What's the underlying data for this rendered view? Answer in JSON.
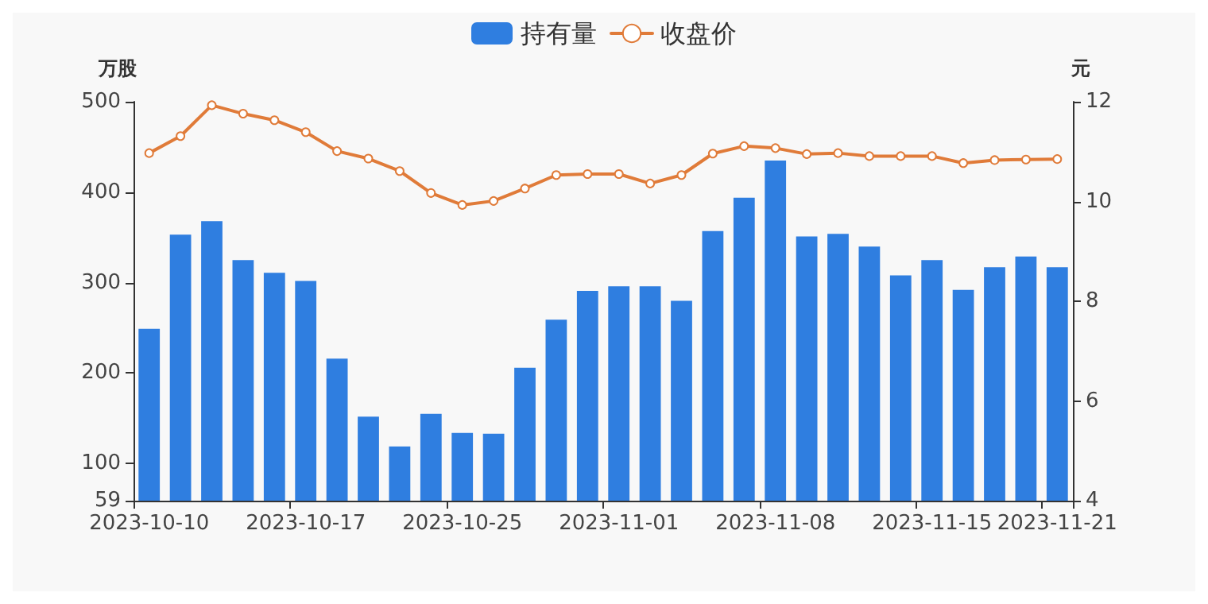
{
  "chart_data": {
    "type": "bar",
    "categories": [
      "2023-10-10",
      null,
      null,
      null,
      null,
      "2023-10-17",
      null,
      null,
      null,
      null,
      "2023-10-25",
      null,
      null,
      null,
      null,
      "2023-11-01",
      null,
      null,
      null,
      null,
      "2023-11-08",
      null,
      null,
      null,
      null,
      "2023-11-15",
      null,
      null,
      null,
      "2023-11-21"
    ],
    "series": [
      {
        "name": "持有量",
        "color": "#2f7ee0",
        "values": [
          249,
          353,
          368,
          325,
          311,
          302,
          216,
          152,
          119,
          155,
          134,
          133,
          206,
          259,
          291,
          296,
          296,
          280,
          357,
          394,
          435,
          351,
          354,
          340,
          308,
          325,
          292,
          317,
          329,
          317
        ]
      },
      {
        "name": "收盘价",
        "type": "line",
        "axis": "y2",
        "color": "#e07b39",
        "marker": "circle",
        "values": [
          10.97,
          11.31,
          11.93,
          11.76,
          11.63,
          11.39,
          11.01,
          10.86,
          10.61,
          10.17,
          9.93,
          10.01,
          10.26,
          10.53,
          10.55,
          10.55,
          10.36,
          10.53,
          10.96,
          11.11,
          11.07,
          10.95,
          10.97,
          10.91,
          10.91,
          10.91,
          10.77,
          10.83,
          10.84,
          10.85
        ]
      }
    ],
    "ylabel": "万股",
    "y2label": "元",
    "ylim": [
      59,
      500
    ],
    "yticks": [
      59,
      100,
      200,
      300,
      400,
      500
    ],
    "y2lim": [
      4,
      12
    ],
    "y2ticks": [
      4,
      6,
      8,
      10,
      12
    ],
    "grid": false,
    "legend": "top"
  }
}
